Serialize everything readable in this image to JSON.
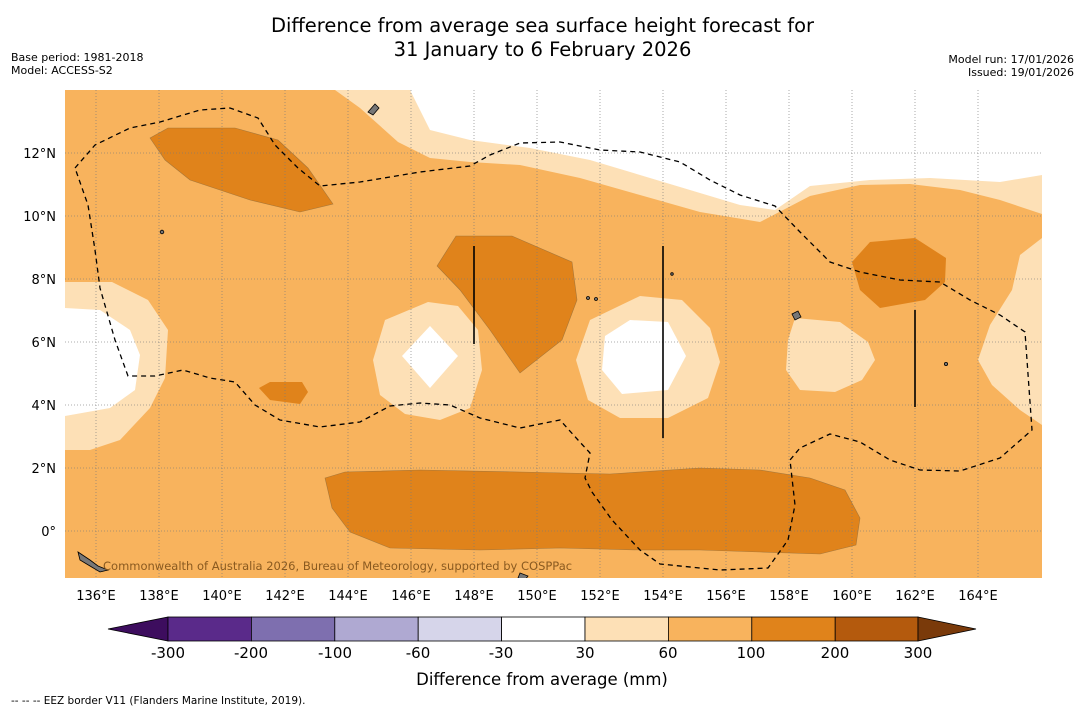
{
  "header": {
    "title_line1": "Difference from average sea surface height forecast for",
    "title_line2": "31 January to 6 February 2026",
    "base_period": "Base period: 1981-2018",
    "model": "Model: ACCESS-S2",
    "model_run": "Model run: 17/01/2026",
    "issued": "Issued: 19/01/2026"
  },
  "map": {
    "lon_labels": [
      "136°E",
      "138°E",
      "140°E",
      "142°E",
      "144°E",
      "146°E",
      "148°E",
      "150°E",
      "152°E",
      "154°E",
      "156°E",
      "158°E",
      "160°E",
      "162°E",
      "164°E"
    ],
    "lat_labels": [
      "12°N",
      "10°N",
      "8°N",
      "6°N",
      "4°N",
      "2°N",
      "0°"
    ],
    "credit": "Commonwealth of Australia 2026, Bureau of Meteorology, supported by COSPPac"
  },
  "legend": {
    "ticks": [
      "-300",
      "-200",
      "-100",
      "-60",
      "-30",
      "30",
      "60",
      "100",
      "200",
      "300"
    ],
    "colors": [
      "#3d0d5e",
      "#5a2a8a",
      "#7e6faf",
      "#afa9d2",
      "#d6d5ea",
      "#ffffff",
      "#fde0b6",
      "#f8b35d",
      "#e0831b",
      "#b45a0d",
      "#7a3a0a"
    ],
    "label": "Difference from average (mm)"
  },
  "footer": {
    "note": "--  --  -- EEZ border V11 (Flanders Marine Institute, 2019)."
  }
}
